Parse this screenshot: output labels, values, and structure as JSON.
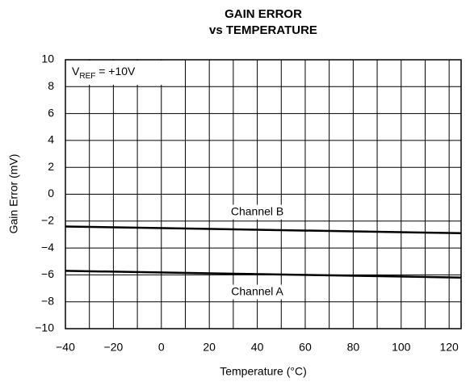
{
  "chart_data": {
    "type": "line",
    "title": [
      "GAIN ERROR",
      "vs TEMPERATURE"
    ],
    "x_label": "Temperature (°C)",
    "y_label": "Gain Error (mV)",
    "annotation": {
      "main": "V",
      "sub": "REF",
      "rest": " = +10V"
    },
    "series": [
      {
        "name": "Channel B",
        "color": "#000000",
        "x": [
          -40,
          125
        ],
        "values": [
          -2.4,
          -2.9
        ]
      },
      {
        "name": "Channel A",
        "color": "#000000",
        "x": [
          -40,
          125
        ],
        "values": [
          -5.7,
          -6.2
        ]
      }
    ],
    "xlim": [
      -40,
      125
    ],
    "ylim": [
      -10,
      10
    ],
    "xticks": [
      {
        "value": -40,
        "label": "−40"
      },
      {
        "value": -20,
        "label": "−20"
      },
      0,
      20,
      40,
      60,
      80,
      100,
      120
    ],
    "xminor": [
      -30,
      -10,
      10,
      30,
      50,
      70,
      90,
      110
    ],
    "yticks": [
      {
        "value": -10,
        "label": "−10"
      },
      {
        "value": -8,
        "label": "−8"
      },
      {
        "value": -6,
        "label": "−6"
      },
      {
        "value": -4,
        "label": "−4"
      },
      {
        "value": -2,
        "label": "−2"
      },
      0,
      2,
      4,
      6,
      8,
      10
    ],
    "grid": true
  }
}
